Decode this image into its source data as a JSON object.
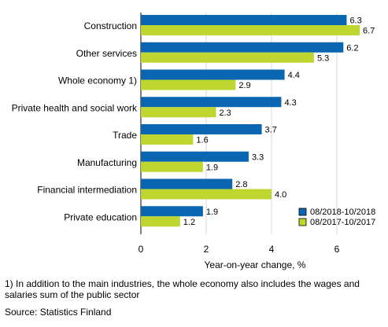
{
  "chart_data": {
    "type": "bar",
    "orientation": "horizontal",
    "categories": [
      "Construction",
      "Other services",
      "Whole economy 1)",
      "Private health and social work",
      "Trade",
      "Manufacturing",
      "Financial intermediation",
      "Private education"
    ],
    "series": [
      {
        "name": "08/2018-10/2018",
        "color": "#0a66b0",
        "values": [
          6.3,
          6.2,
          4.4,
          4.3,
          3.7,
          3.3,
          2.8,
          1.9
        ]
      },
      {
        "name": "08/2017-10/2017",
        "color": "#bfd630",
        "values": [
          6.7,
          5.3,
          2.9,
          2.3,
          1.6,
          1.9,
          4.0,
          1.2
        ]
      }
    ],
    "xlabel": "Year-on-year change, %",
    "xlim": [
      0,
      7.1
    ],
    "xticks": [
      "0",
      "2",
      "4",
      "6"
    ],
    "grid": "vertical",
    "legend": "bottom-right"
  },
  "footnote": {
    "line1": "1) In addition to the main industries, the whole economy also includes the wages and",
    "line2": "salaries sum of the public sector",
    "source": "Source: Statistics Finland"
  }
}
